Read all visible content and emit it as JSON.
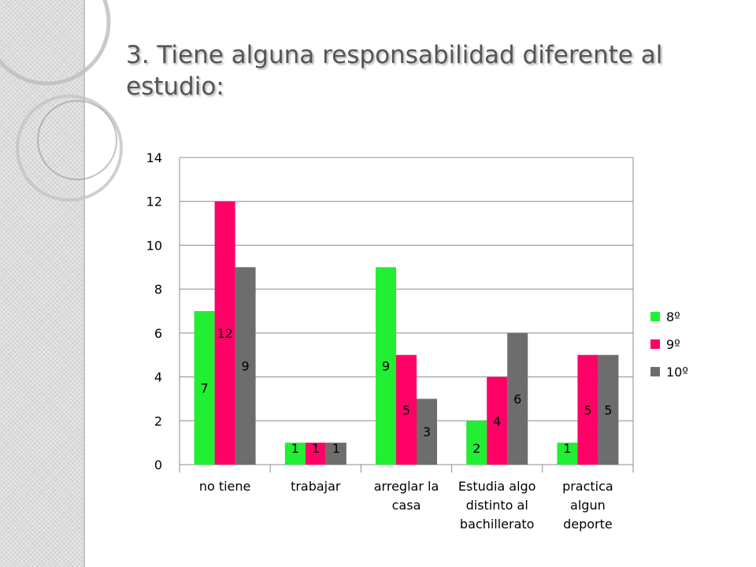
{
  "slide": {
    "title": "3. Tiene alguna responsabilidad diferente al estudio:"
  },
  "chart_data": {
    "type": "bar",
    "categories": [
      [
        "no tiene"
      ],
      [
        "trabajar"
      ],
      [
        "arreglar la",
        "casa"
      ],
      [
        "Estudia algo",
        "distinto al",
        "bachillerato"
      ],
      [
        "practica",
        "algun",
        "deporte"
      ]
    ],
    "series": [
      {
        "name": "8º",
        "color": "#22ee33",
        "values": [
          7,
          1,
          9,
          2,
          1
        ]
      },
      {
        "name": "9º",
        "color": "#ff0066",
        "values": [
          12,
          1,
          5,
          4,
          5
        ]
      },
      {
        "name": "10º",
        "color": "#6d6d6d",
        "values": [
          9,
          1,
          3,
          6,
          5
        ]
      }
    ],
    "y_ticks": [
      0,
      2,
      4,
      6,
      8,
      10,
      12,
      14
    ],
    "ylim": [
      0,
      14
    ],
    "grid": true,
    "legend_position": "right"
  }
}
